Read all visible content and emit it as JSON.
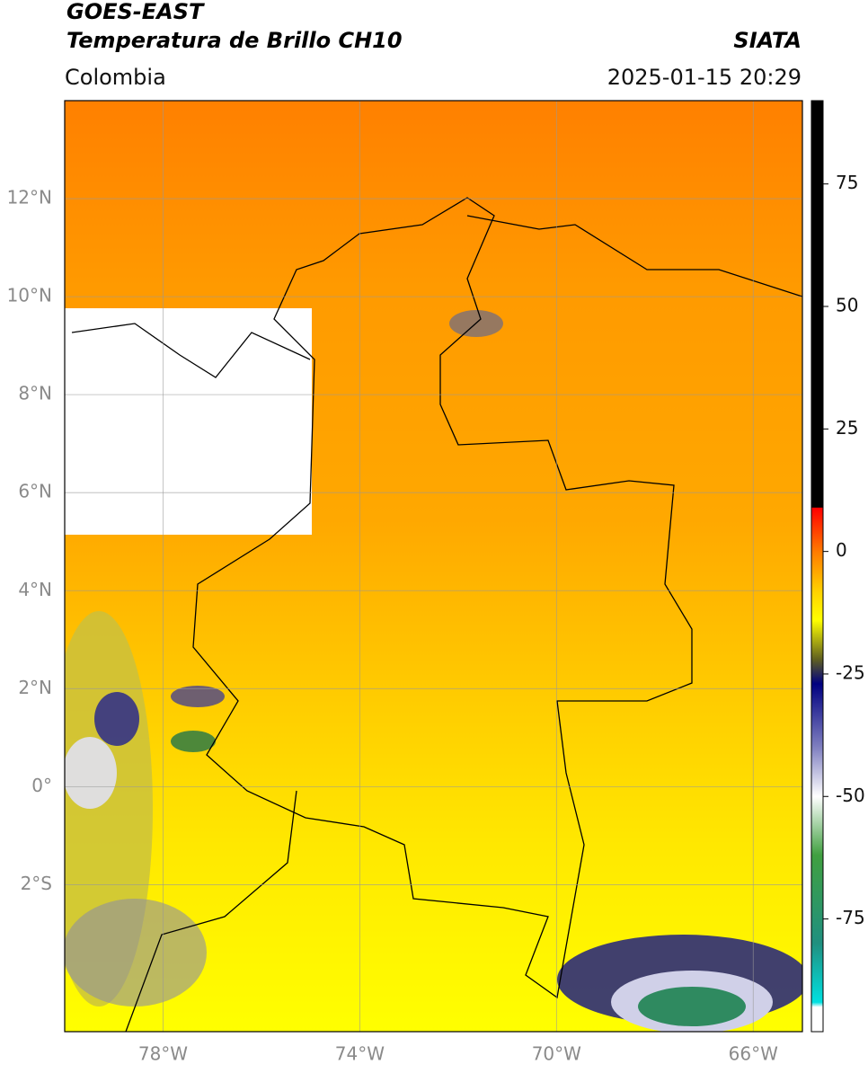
{
  "chart_data": {
    "type": "map",
    "title": "GOES-EAST",
    "subtitle": "Temperatura de Brillo CH10",
    "region": "Colombia",
    "source": "SIATA",
    "datetime": "2025-01-15 20:29",
    "xlim": [
      -80,
      -65
    ],
    "ylim": [
      -5,
      14
    ],
    "xticks": [
      {
        "value": -78,
        "label": "78°W"
      },
      {
        "value": -74,
        "label": "74°W"
      },
      {
        "value": -70,
        "label": "70°W"
      },
      {
        "value": -66,
        "label": "66°W"
      }
    ],
    "yticks": [
      {
        "value": 12,
        "label": "12°N"
      },
      {
        "value": 10,
        "label": "10°N"
      },
      {
        "value": 8,
        "label": "8°N"
      },
      {
        "value": 6,
        "label": "6°N"
      },
      {
        "value": 4,
        "label": "4°N"
      },
      {
        "value": 2,
        "label": "2°N"
      },
      {
        "value": 0,
        "label": "0°"
      },
      {
        "value": -2,
        "label": "2°S"
      }
    ],
    "grid": true,
    "colorbar": {
      "lim": [
        -98,
        92
      ],
      "ticks": [
        75,
        50,
        25,
        0,
        -25,
        -50,
        -75
      ],
      "colormap": [
        {
          "value": 92,
          "color": "#000000"
        },
        {
          "value": 9,
          "color": "#000000"
        },
        {
          "value": 8.9,
          "color": "#ff0000"
        },
        {
          "value": 0,
          "color": "#ff7a00"
        },
        {
          "value": -8,
          "color": "#ffd000"
        },
        {
          "value": -14,
          "color": "#ffff00"
        },
        {
          "value": -22,
          "color": "#606020"
        },
        {
          "value": -27,
          "color": "#000080"
        },
        {
          "value": -40,
          "color": "#8080c0"
        },
        {
          "value": -50,
          "color": "#ffffff"
        },
        {
          "value": -62,
          "color": "#40a040"
        },
        {
          "value": -80,
          "color": "#209080"
        },
        {
          "value": -92,
          "color": "#00e0e0"
        },
        {
          "value": -93,
          "color": "#ffffff"
        },
        {
          "value": -98,
          "color": "#ffffff"
        }
      ]
    }
  }
}
